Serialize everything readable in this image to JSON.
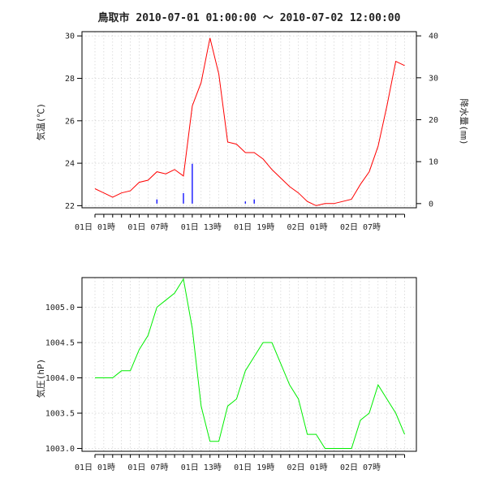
{
  "chart_data": [
    {
      "type": "line",
      "title": "鳥取市 2010-07-01 01:00:00 〜 2010-07-02 12:00:00",
      "ylabel": "気温(℃)",
      "y2label": "降水量(㎜)",
      "x": [
        "2010-07-01 01:00",
        "2010-07-01 02:00",
        "2010-07-01 03:00",
        "2010-07-01 04:00",
        "2010-07-01 05:00",
        "2010-07-01 06:00",
        "2010-07-01 07:00",
        "2010-07-01 08:00",
        "2010-07-01 09:00",
        "2010-07-01 10:00",
        "2010-07-01 11:00",
        "2010-07-01 12:00",
        "2010-07-01 13:00",
        "2010-07-01 14:00",
        "2010-07-01 15:00",
        "2010-07-01 16:00",
        "2010-07-01 17:00",
        "2010-07-01 18:00",
        "2010-07-01 19:00",
        "2010-07-01 20:00",
        "2010-07-01 21:00",
        "2010-07-01 22:00",
        "2010-07-01 23:00",
        "2010-07-02 00:00",
        "2010-07-02 01:00",
        "2010-07-02 02:00",
        "2010-07-02 03:00",
        "2010-07-02 04:00",
        "2010-07-02 05:00",
        "2010-07-02 06:00",
        "2010-07-02 07:00",
        "2010-07-02 08:00",
        "2010-07-02 09:00",
        "2010-07-02 10:00",
        "2010-07-02 11:00",
        "2010-07-02 12:00"
      ],
      "xticklabels": [
        "01日 01時",
        "01日 07時",
        "01日 13時",
        "01日 19時",
        "02日 01時",
        "02日 07時"
      ],
      "ylim": [
        21.9,
        30.2
      ],
      "yticks": [
        22,
        24,
        26,
        28,
        30
      ],
      "y2lim": [
        -1,
        41
      ],
      "y2ticks": [
        0,
        10,
        20,
        30,
        40
      ],
      "grid": true,
      "series": [
        {
          "axis": "left",
          "kind": "line",
          "color": "#ff0000",
          "values": [
            22.8,
            22.6,
            22.4,
            22.6,
            22.7,
            23.1,
            23.2,
            23.6,
            23.5,
            23.7,
            23.4,
            26.7,
            27.8,
            29.9,
            28.2,
            25.0,
            24.9,
            24.5,
            24.5,
            24.2,
            23.7,
            23.3,
            22.9,
            22.6,
            22.2,
            22.0,
            22.1,
            22.1,
            22.2,
            22.3,
            23.0,
            23.6,
            24.8,
            26.7,
            28.8,
            28.6
          ]
        },
        {
          "axis": "right",
          "kind": "bar",
          "color": "#0000ff",
          "values": [
            0,
            0,
            0,
            0,
            0,
            0,
            0,
            1,
            0,
            0,
            2.5,
            9.5,
            0,
            0,
            0,
            0,
            0,
            0.5,
            1,
            0,
            0,
            0,
            0,
            0,
            0,
            0,
            0,
            0,
            0,
            0,
            0,
            0,
            0,
            0,
            0,
            0
          ]
        }
      ]
    },
    {
      "type": "line",
      "title": "",
      "ylabel": "気圧(hP)",
      "x": [
        "2010-07-01 01:00",
        "2010-07-01 02:00",
        "2010-07-01 03:00",
        "2010-07-01 04:00",
        "2010-07-01 05:00",
        "2010-07-01 06:00",
        "2010-07-01 07:00",
        "2010-07-01 08:00",
        "2010-07-01 09:00",
        "2010-07-01 10:00",
        "2010-07-01 11:00",
        "2010-07-01 12:00",
        "2010-07-01 13:00",
        "2010-07-01 14:00",
        "2010-07-01 15:00",
        "2010-07-01 16:00",
        "2010-07-01 17:00",
        "2010-07-01 18:00",
        "2010-07-01 19:00",
        "2010-07-01 20:00",
        "2010-07-01 21:00",
        "2010-07-01 22:00",
        "2010-07-01 23:00",
        "2010-07-02 00:00",
        "2010-07-02 01:00",
        "2010-07-02 02:00",
        "2010-07-02 03:00",
        "2010-07-02 04:00",
        "2010-07-02 05:00",
        "2010-07-02 06:00",
        "2010-07-02 07:00",
        "2010-07-02 08:00",
        "2010-07-02 09:00",
        "2010-07-02 10:00",
        "2010-07-02 11:00",
        "2010-07-02 12:00"
      ],
      "xticklabels": [
        "01日 01時",
        "01日 07時",
        "01日 13時",
        "01日 19時",
        "02日 01時",
        "02日 07時"
      ],
      "ylim": [
        1002.96,
        1005.42
      ],
      "yticks": [
        1003.0,
        1003.5,
        1004.0,
        1004.5,
        1005.0
      ],
      "yticklabels": [
        "1003.0",
        "1003.5",
        "1004.0",
        "1004.5",
        "1005.0"
      ],
      "grid": true,
      "series": [
        {
          "axis": "left",
          "kind": "line",
          "color": "#00ee00",
          "values": [
            1004.0,
            1004.0,
            1004.0,
            1004.1,
            1004.1,
            1004.4,
            1004.6,
            1005.0,
            1005.1,
            1005.2,
            1005.4,
            1004.7,
            1003.6,
            1003.1,
            1003.1,
            1003.6,
            1003.7,
            1004.1,
            1004.3,
            1004.5,
            1004.5,
            1004.2,
            1003.9,
            1003.7,
            1003.2,
            1003.2,
            1003.0,
            1003.0,
            1003.0,
            1003.0,
            1003.4,
            1003.5,
            1003.9,
            1003.7,
            1003.5,
            1003.2
          ]
        }
      ]
    }
  ]
}
